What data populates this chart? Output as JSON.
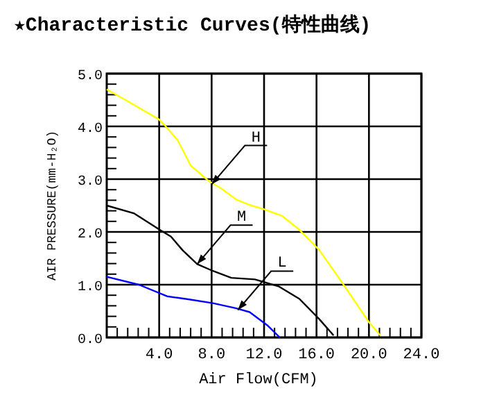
{
  "chart_data": {
    "type": "line",
    "title": "★Characteristic Curves(特性曲线)",
    "xlabel": "Air Flow(CFM)",
    "ylabel": "AIR PRESSURE(mm-H₂O)",
    "xlim": [
      0,
      24
    ],
    "ylim": [
      0,
      5
    ],
    "xticks": [
      {
        "value": 0.8,
        "label": null
      },
      {
        "value": 1.6,
        "label": null
      },
      {
        "value": 2.4,
        "label": null
      },
      {
        "value": 3.2,
        "label": null
      },
      {
        "value": 4,
        "label": "4.0"
      },
      {
        "value": 4.8,
        "label": null
      },
      {
        "value": 5.6,
        "label": null
      },
      {
        "value": 6.4,
        "label": null
      },
      {
        "value": 7.2,
        "label": null
      },
      {
        "value": 8,
        "label": "8.0"
      },
      {
        "value": 8.8,
        "label": null
      },
      {
        "value": 9.6,
        "label": null
      },
      {
        "value": 10.4,
        "label": null
      },
      {
        "value": 11.2,
        "label": null
      },
      {
        "value": 12,
        "label": "12.0"
      },
      {
        "value": 12.8,
        "label": null
      },
      {
        "value": 13.6,
        "label": null
      },
      {
        "value": 14.4,
        "label": null
      },
      {
        "value": 15.2,
        "label": null
      },
      {
        "value": 16,
        "label": "16.0"
      },
      {
        "value": 16.8,
        "label": null
      },
      {
        "value": 17.6,
        "label": null
      },
      {
        "value": 18.4,
        "label": null
      },
      {
        "value": 19.2,
        "label": null
      },
      {
        "value": 20,
        "label": "20.0"
      },
      {
        "value": 20.8,
        "label": null
      },
      {
        "value": 21.6,
        "label": null
      },
      {
        "value": 22.4,
        "label": null
      },
      {
        "value": 23.2,
        "label": null
      },
      {
        "value": 24,
        "label": "24.0"
      }
    ],
    "yticks": [
      {
        "value": 0,
        "label": "0.0"
      },
      {
        "value": 0.2,
        "label": null
      },
      {
        "value": 0.4,
        "label": null
      },
      {
        "value": 0.6,
        "label": null
      },
      {
        "value": 0.8,
        "label": null
      },
      {
        "value": 1,
        "label": "1.0"
      },
      {
        "value": 1.2,
        "label": null
      },
      {
        "value": 1.4,
        "label": null
      },
      {
        "value": 1.6,
        "label": null
      },
      {
        "value": 1.8,
        "label": null
      },
      {
        "value": 2,
        "label": "2.0"
      },
      {
        "value": 2.2,
        "label": null
      },
      {
        "value": 2.4,
        "label": null
      },
      {
        "value": 2.6,
        "label": null
      },
      {
        "value": 2.8,
        "label": null
      },
      {
        "value": 3,
        "label": "3.0"
      },
      {
        "value": 3.2,
        "label": null
      },
      {
        "value": 3.4,
        "label": null
      },
      {
        "value": 3.6,
        "label": null
      },
      {
        "value": 3.8,
        "label": null
      },
      {
        "value": 4,
        "label": "4.0"
      },
      {
        "value": 4.2,
        "label": null
      },
      {
        "value": 4.4,
        "label": null
      },
      {
        "value": 4.6,
        "label": null
      },
      {
        "value": 4.8,
        "label": null
      },
      {
        "value": 5,
        "label": "5.0"
      }
    ],
    "grid": true,
    "marker": "none",
    "line_style": "solid",
    "series": [
      {
        "color": "#ffff00",
        "x": [
          0,
          1.3,
          4.0,
          4.5,
          5.4,
          6.4,
          7.8,
          8.7,
          9.9,
          10.8,
          12.0,
          13.4,
          14.6,
          16.2,
          17.9,
          20.0,
          20.9
        ],
        "values": [
          4.7,
          4.52,
          4.13,
          4.0,
          3.74,
          3.26,
          2.96,
          2.83,
          2.61,
          2.52,
          2.43,
          2.3,
          2.06,
          1.66,
          1.06,
          0.29,
          0.03
        ]
      },
      {
        "color": "#000000",
        "x": [
          0,
          2.1,
          4.05,
          4.9,
          5.8,
          6.9,
          8.1,
          9.5,
          11.3,
          13.1,
          14.7,
          16.2,
          17.3
        ],
        "values": [
          2.5,
          2.35,
          2.04,
          1.91,
          1.65,
          1.39,
          1.26,
          1.13,
          1.1,
          0.97,
          0.73,
          0.35,
          0.04
        ]
      },
      {
        "color": "#0000ff",
        "x": [
          0,
          2.45,
          4.6,
          6.3,
          8.1,
          9.9,
          10.9,
          12.3,
          13.2
        ],
        "values": [
          1.15,
          1.0,
          0.78,
          0.72,
          0.65,
          0.55,
          0.48,
          0.22,
          0.0
        ]
      }
    ],
    "annotations": [
      {
        "text": "H",
        "x": 8.0,
        "y": 2.9
      },
      {
        "text": "M",
        "x": 6.9,
        "y": 1.39
      },
      {
        "text": "L",
        "x": 10.0,
        "y": 0.52
      }
    ]
  }
}
